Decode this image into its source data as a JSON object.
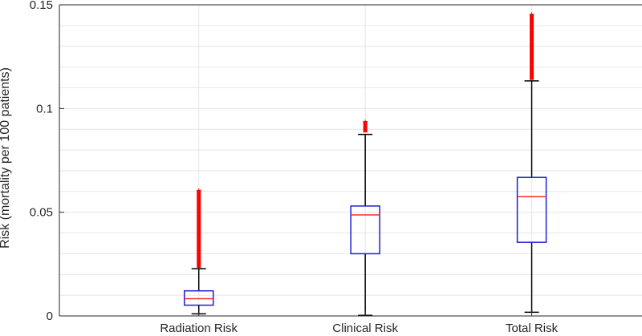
{
  "chart_data": {
    "type": "box",
    "title": "",
    "ylabel": "Risk (mortality per 100 patients)",
    "xlabel": "",
    "ylim": [
      0,
      0.15
    ],
    "yticks": [
      0,
      0.05,
      0.1,
      0.15
    ],
    "ytick_labels": [
      "0",
      "0.05",
      "0.1",
      "0.15"
    ],
    "grid": true,
    "colors": {
      "box": "#1f1fd6",
      "median": "#ff2a2a",
      "whisker": "#000000",
      "outlier": "#ff0000",
      "grid": "#e6e6e6",
      "axis": "#262626"
    },
    "categories": [
      "Radiation Risk",
      "Clinical Risk",
      "Total Risk"
    ],
    "boxes": [
      {
        "label": "Radiation Risk",
        "whisker_low": 0.001,
        "q1": 0.0052,
        "median": 0.0083,
        "q3": 0.0121,
        "whisker_high": 0.0228,
        "outlier_min": 0.0232,
        "outlier_max": 0.0608
      },
      {
        "label": "Clinical Risk",
        "whisker_low": 0.0003,
        "q1": 0.03,
        "median": 0.0487,
        "q3": 0.053,
        "whisker_high": 0.0875,
        "outlier_min": 0.0885,
        "outlier_max": 0.094
      },
      {
        "label": "Total Risk",
        "whisker_low": 0.0018,
        "q1": 0.0355,
        "median": 0.0575,
        "q3": 0.0668,
        "whisker_high": 0.1133,
        "outlier_min": 0.1138,
        "outlier_max": 0.1457
      }
    ]
  }
}
